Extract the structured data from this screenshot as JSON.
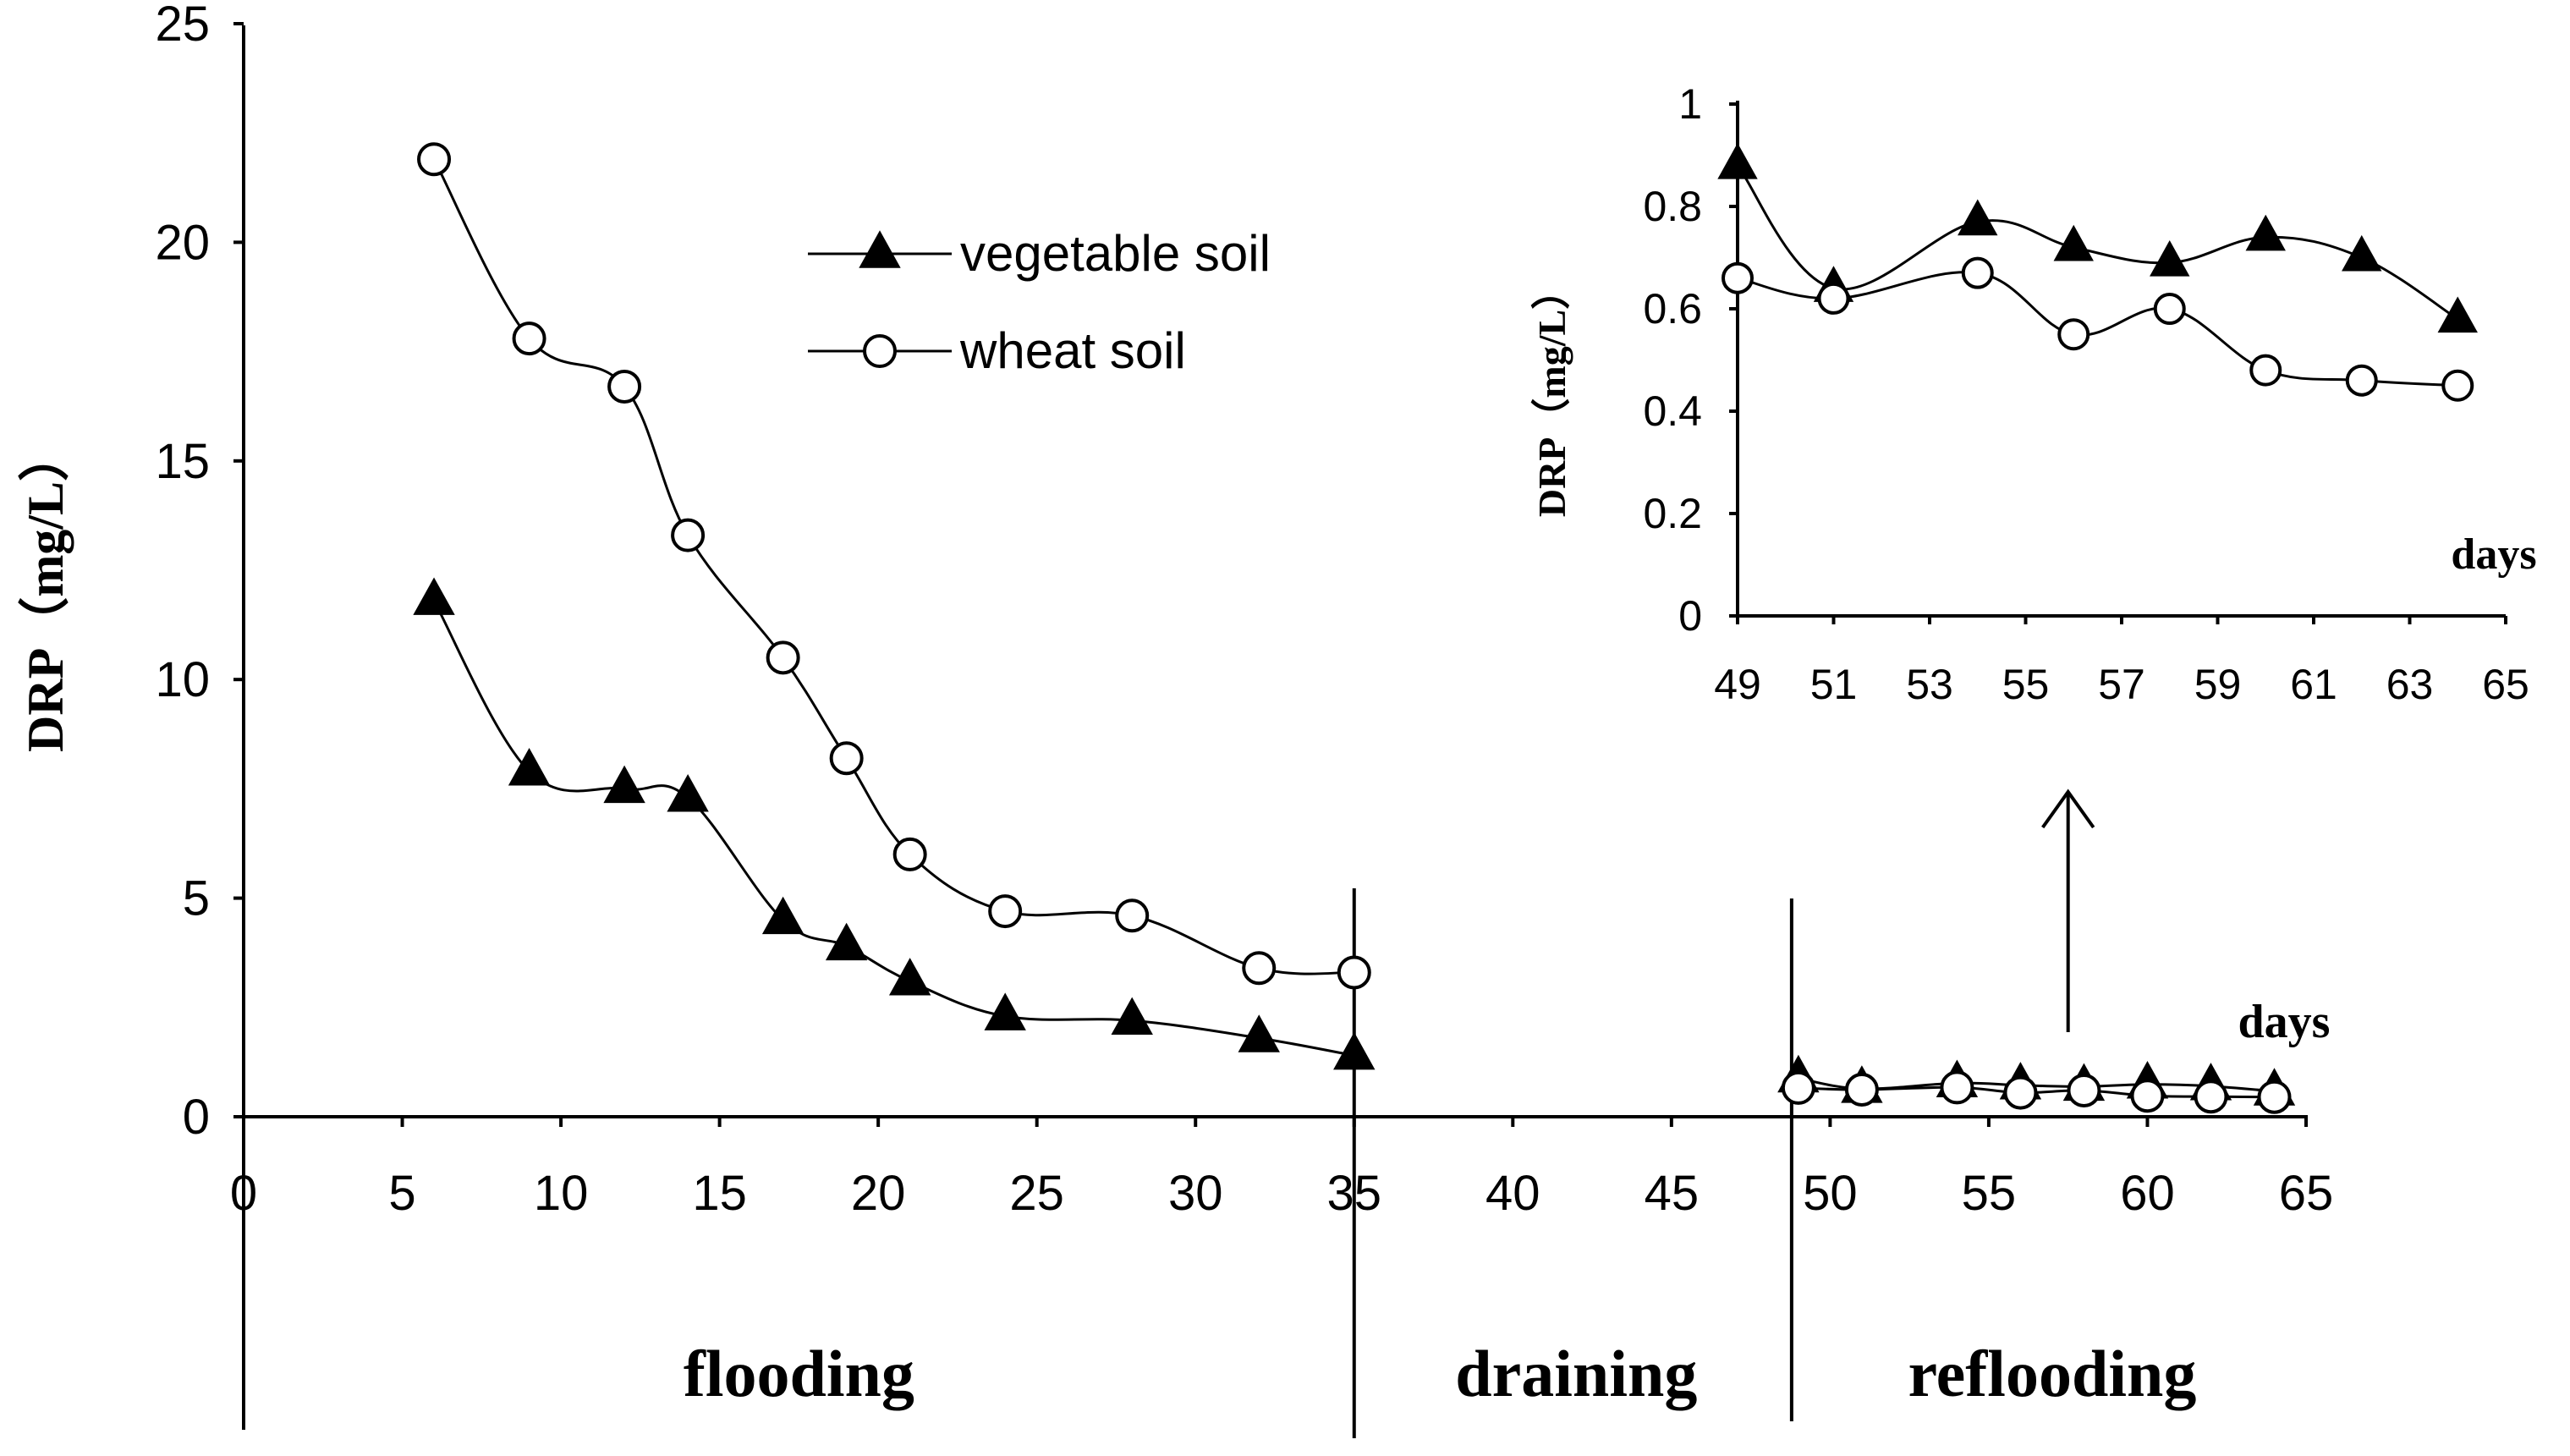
{
  "chart_data": [
    {
      "type": "line",
      "title": "",
      "xlabel": "days",
      "ylabel": "DRP（mg/L）",
      "xlim": [
        0,
        65
      ],
      "ylim": [
        0,
        25
      ],
      "x_ticks": [
        0,
        5,
        10,
        15,
        20,
        25,
        30,
        35,
        40,
        45,
        50,
        55,
        60,
        65
      ],
      "y_ticks": [
        0,
        5,
        10,
        15,
        20,
        25
      ],
      "legend": [
        "vegetable soil",
        "wheat soil"
      ],
      "series": [
        {
          "name": "vegetable soil",
          "marker": "filled-triangle",
          "x": [
            6,
            9,
            12,
            14,
            17,
            19,
            21,
            24,
            28,
            32,
            35,
            49,
            51,
            54,
            56,
            58,
            60,
            62,
            64
          ],
          "y": [
            11.8,
            7.9,
            7.5,
            7.3,
            4.5,
            3.9,
            3.1,
            2.3,
            2.2,
            1.8,
            1.4,
            0.88,
            0.64,
            0.77,
            0.72,
            0.69,
            0.74,
            0.7,
            0.58
          ]
        },
        {
          "name": "wheat soil",
          "marker": "open-circle",
          "x": [
            6,
            9,
            12,
            14,
            17,
            19,
            21,
            24,
            28,
            32,
            35,
            49,
            51,
            54,
            56,
            58,
            60,
            62,
            64
          ],
          "y": [
            21.9,
            17.8,
            16.7,
            13.3,
            10.5,
            8.2,
            6.0,
            4.7,
            4.6,
            3.4,
            3.3,
            0.66,
            0.62,
            0.67,
            0.55,
            0.6,
            0.48,
            0.46,
            0.45
          ]
        }
      ],
      "phases": [
        "flooding",
        "draining",
        "reflooding"
      ],
      "phase_boundaries": [
        0,
        35,
        49
      ]
    },
    {
      "type": "line",
      "title": "",
      "xlabel": "days",
      "ylabel": "DRP（mg/L）",
      "xlim": [
        49,
        65
      ],
      "ylim": [
        0,
        1
      ],
      "x_ticks": [
        49,
        51,
        53,
        55,
        57,
        59,
        61,
        63,
        65
      ],
      "y_ticks": [
        0,
        0.2,
        0.4,
        0.6,
        0.8,
        1
      ],
      "series": [
        {
          "name": "vegetable soil",
          "marker": "filled-triangle",
          "x": [
            49,
            51,
            54,
            56,
            58,
            60,
            62,
            64
          ],
          "y": [
            0.88,
            0.64,
            0.77,
            0.72,
            0.69,
            0.74,
            0.7,
            0.58
          ]
        },
        {
          "name": "wheat soil",
          "marker": "open-circle",
          "x": [
            49,
            51,
            54,
            56,
            58,
            60,
            62,
            64
          ],
          "y": [
            0.66,
            0.62,
            0.67,
            0.55,
            0.6,
            0.48,
            0.46,
            0.45
          ]
        }
      ]
    }
  ]
}
